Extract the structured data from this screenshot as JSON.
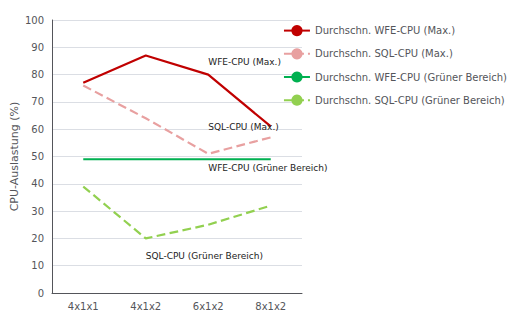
{
  "chart_data": {
    "type": "line",
    "categories": [
      "4x1x1",
      "4x1x2",
      "6x1x2",
      "8x1x2"
    ],
    "series": [
      {
        "name": "Durchschn. WFE-CPU (Max.)",
        "color": "#c00000",
        "line_style": "solid",
        "values": [
          77,
          87,
          80,
          61
        ]
      },
      {
        "name": "Durchschn. SQL-CPU (Max.)",
        "color": "#e8a0a0",
        "line_style": "dashed",
        "values": [
          76,
          64,
          51,
          57
        ]
      },
      {
        "name": "Durchschn. WFE-CPU (Grüner Bereich)",
        "color": "#00b050",
        "line_style": "solid",
        "values": [
          49,
          49,
          49,
          49
        ]
      },
      {
        "name": "Durchschn. SQL-CPU (Grüner Bereich)",
        "color": "#92d050",
        "line_style": "dashed",
        "values": [
          39,
          20,
          25,
          32
        ]
      }
    ],
    "ylabel": "CPU-Auslastung (%)",
    "ylim": [
      0,
      100
    ],
    "yticks": [
      0,
      10,
      20,
      30,
      40,
      50,
      60,
      70,
      80,
      90,
      100
    ],
    "grid": true,
    "legend": "right",
    "annotations": [
      {
        "text": "WFE-CPU (Max.)",
        "x": 1.65,
        "y": 83
      },
      {
        "text": "SQL-CPU (Max.)",
        "x": 1.58,
        "y": 59
      },
      {
        "text": "WFE-CPU (Grüner Bereich)",
        "x": 1.6,
        "y": 44
      },
      {
        "text": "SQL-CPU (Grüner Bereich)",
        "x": 0.5,
        "y": 12
      }
    ]
  }
}
